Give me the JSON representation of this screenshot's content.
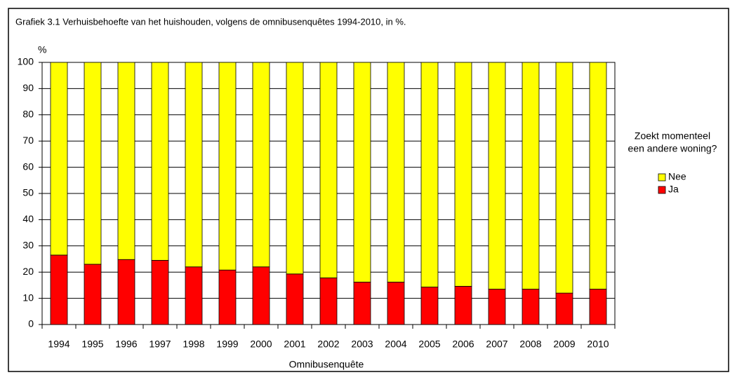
{
  "chart_data": {
    "type": "stacked_bar",
    "title": "Grafiek 3.1 Verhuisbehoefte van het huishouden,  volgens de omnibusenquêtes  1994-2010, in %.",
    "y_label": "%",
    "x_label": "Omnibusenquête",
    "legend_title": [
      "Zoekt momenteel",
      "een andere woning?"
    ],
    "categories": [
      "1994",
      "1995",
      "1996",
      "1997",
      "1998",
      "1999",
      "2000",
      "2001",
      "2002",
      "2003",
      "2004",
      "2005",
      "2006",
      "2007",
      "2008",
      "2009",
      "2010"
    ],
    "series": [
      {
        "name": "Ja",
        "color": "#ff0000",
        "values": [
          26.5,
          23,
          24.8,
          24.5,
          22,
          20.8,
          22,
          19.3,
          17.8,
          16.2,
          16.2,
          14.3,
          14.6,
          13.5,
          13.5,
          12,
          13.5
        ]
      },
      {
        "name": "Nee",
        "color": "#ffff00",
        "values": [
          73.5,
          77,
          75.2,
          75.5,
          78,
          79.2,
          78,
          80.7,
          82.2,
          83.8,
          83.8,
          85.7,
          85.4,
          86.5,
          86.5,
          88,
          86.5
        ]
      }
    ],
    "ylim": [
      0,
      100
    ],
    "yticks": [
      0,
      10,
      20,
      30,
      40,
      50,
      60,
      70,
      80,
      90,
      100
    ],
    "grid": true
  }
}
